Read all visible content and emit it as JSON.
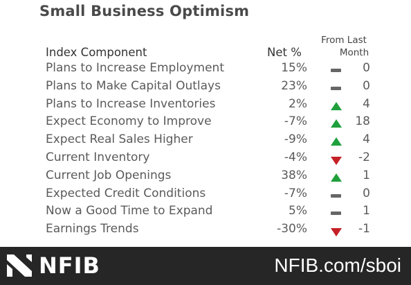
{
  "title": "Small Business Optimism",
  "headers": {
    "component": "Index Component",
    "net": "Net %",
    "change_line1": "From Last",
    "change_line2": "Month"
  },
  "rows": [
    {
      "component": "Plans to Increase Employment",
      "net": "15%",
      "trend": "flat",
      "change": "0"
    },
    {
      "component": "Plans to Make Capital Outlays",
      "net": "23%",
      "trend": "flat",
      "change": "0"
    },
    {
      "component": "Plans to Increase Inventories",
      "net": "2%",
      "trend": "up",
      "change": "4"
    },
    {
      "component": "Expect Economy to Improve",
      "net": "-7%",
      "trend": "up",
      "change": "18"
    },
    {
      "component": "Expect Real Sales Higher",
      "net": "-9%",
      "trend": "up",
      "change": "4"
    },
    {
      "component": "Current Inventory",
      "net": "-4%",
      "trend": "down",
      "change": "-2"
    },
    {
      "component": "Current Job Openings",
      "net": "38%",
      "trend": "up",
      "change": "1"
    },
    {
      "component": "Expected Credit Conditions",
      "net": "-7%",
      "trend": "flat",
      "change": "0"
    },
    {
      "component": "Now a Good Time to Expand",
      "net": "5%",
      "trend": "flat",
      "change": "1"
    },
    {
      "component": "Earnings Trends",
      "net": "-30%",
      "trend": "down",
      "change": "-1"
    }
  ],
  "footer": {
    "logo_text": "NFIB",
    "url": "NFIB.com/sboi"
  },
  "colors": {
    "up": "#1fa03c",
    "down": "#c42026",
    "flat": "#666666",
    "footer_bg": "#262626"
  }
}
